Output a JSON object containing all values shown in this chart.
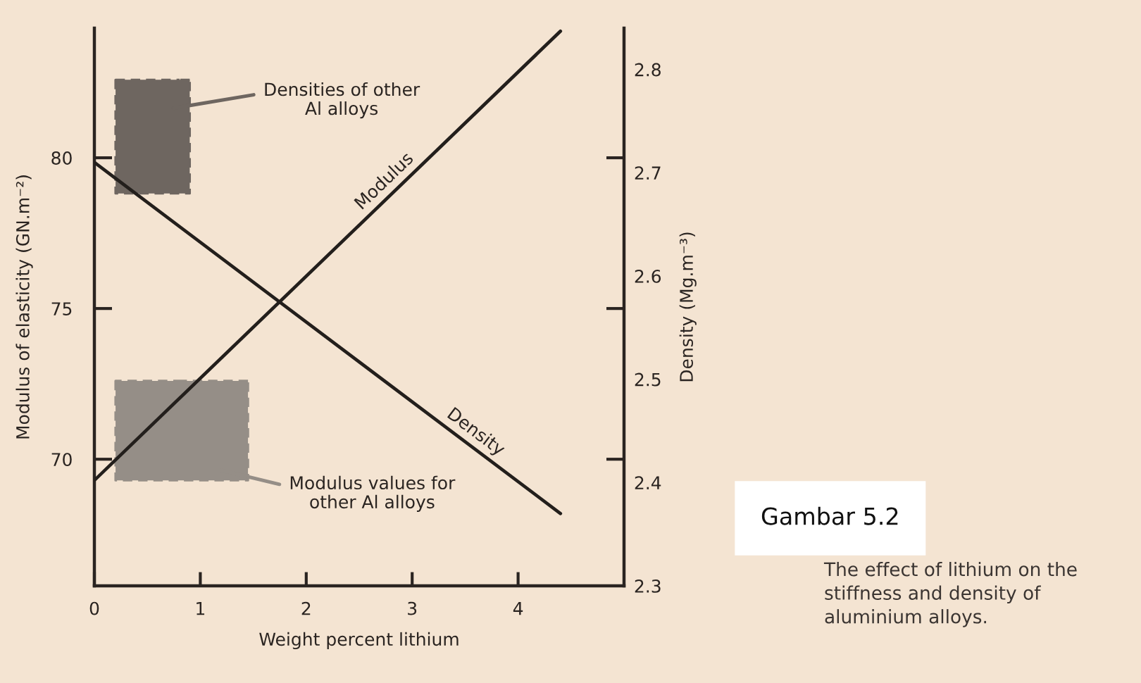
{
  "chart_data": {
    "type": "line",
    "xlabel": "Weight percent lithium",
    "ylabel": "Modulus of elasticity (GN.m⁻²)",
    "y2label": "Density (Mg.m⁻³)",
    "xlim": [
      0,
      5
    ],
    "xticks": [
      0,
      1,
      2,
      3,
      4
    ],
    "ylim": [
      65.8,
      84.3
    ],
    "yticks": [
      70,
      75,
      80
    ],
    "y2lim": [
      2.3,
      2.84
    ],
    "y2ticks": [
      2.3,
      2.4,
      2.5,
      2.6,
      2.7,
      2.8
    ],
    "series": [
      {
        "name": "Densities of other\nAl alloys",
        "axis": "y2",
        "color": "#6e6660",
        "line_style": "dashed",
        "x": [
          0.2,
          0.9
        ],
        "values": [
          null,
          null
        ],
        "lower": [
          2.68,
          2.68
        ],
        "upper": [
          2.79,
          2.79
        ]
      },
      {
        "name": "Modulus values for\nother Al alloys",
        "color": "#958e87",
        "line_style": "dashed",
        "x": [
          0.2,
          1.45
        ],
        "values": [
          null,
          null
        ],
        "lower": [
          69.3,
          69.3
        ],
        "upper": [
          72.6,
          72.6
        ]
      },
      {
        "name": "Modulus",
        "color": "#231f1c",
        "x": [
          0,
          4.4
        ],
        "values": [
          69.3,
          84.2
        ]
      },
      {
        "name": "Density",
        "axis": "y2",
        "color": "#231f1c",
        "x": [
          0,
          4.4
        ],
        "values": [
          2.71,
          2.37
        ]
      }
    ],
    "annotations": [
      "Gambar 5.2",
      "The effect of lithium on the\nstiffness and density of\naluminium alloys."
    ]
  }
}
